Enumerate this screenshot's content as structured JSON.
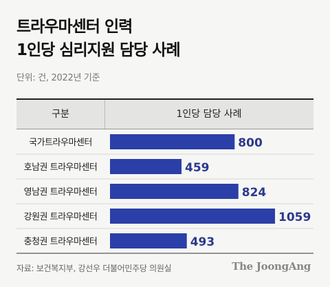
{
  "chart_data": {
    "type": "bar",
    "orientation": "horizontal",
    "title_lines": [
      "트라우마센터 인력",
      "1인당 심리지원 담당 사례"
    ],
    "subtitle": "단위: 건, 2022년 기준",
    "column_headers": [
      "구분",
      "1인당 담당 사례"
    ],
    "categories": [
      "국가트라우마센터",
      "호남권 트라우마센터",
      "영남권 트라우마센터",
      "강원권 트라우마센터",
      "충청권 트라우마센터"
    ],
    "values": [
      800,
      459,
      824,
      1059,
      493
    ],
    "value_labels": [
      "800",
      "459",
      "824",
      "1059",
      "493"
    ],
    "xlim": [
      0,
      1059
    ],
    "bar_color": "#2b3fa8",
    "label_color": "#2b3a8c",
    "source": "자료: 보건복지부, 강선우 더불어민주당 의원실",
    "brand": "The JoongAng"
  }
}
